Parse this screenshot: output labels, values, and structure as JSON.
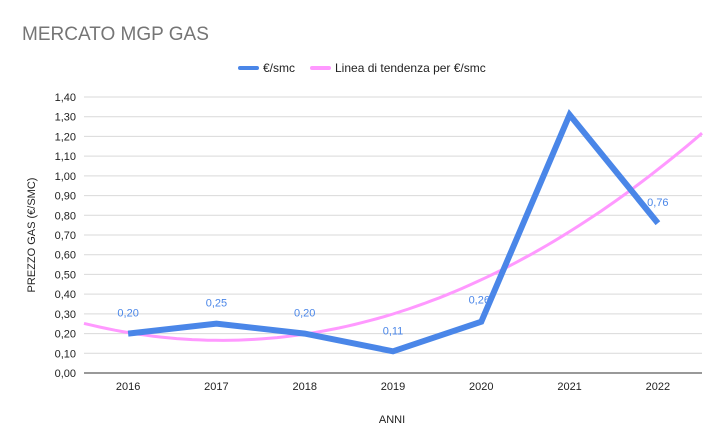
{
  "chart_data": {
    "type": "line",
    "title": "MERCATO MGP GAS",
    "xlabel": "ANNI",
    "ylabel": "PREZZO GAS (€/SMC)",
    "categories": [
      "2016",
      "2017",
      "2018",
      "2019",
      "2020",
      "2021",
      "2022"
    ],
    "series": [
      {
        "name": "€/smc",
        "values": [
          0.2,
          0.25,
          0.2,
          0.11,
          0.26,
          1.31,
          0.76
        ],
        "data_labels": [
          "0,20",
          "0,25",
          "0,20",
          "0,11",
          "0,26",
          "",
          "0,76"
        ],
        "color": "#4a86e8"
      },
      {
        "name": "Linea di tendenza per €/smc",
        "type": "trendline-polynomial",
        "values_at_edges": {
          "start": 0.25,
          "end": 1.2
        },
        "color": "#ff99ff"
      }
    ],
    "ylim": [
      0,
      1.4
    ],
    "yticks": [
      "0,00",
      "0,10",
      "0,20",
      "0,30",
      "0,40",
      "0,50",
      "0,60",
      "0,70",
      "0,80",
      "0,90",
      "1,00",
      "1,10",
      "1,20",
      "1,30",
      "1,40"
    ],
    "grid": true,
    "legend_position": "top-center"
  }
}
